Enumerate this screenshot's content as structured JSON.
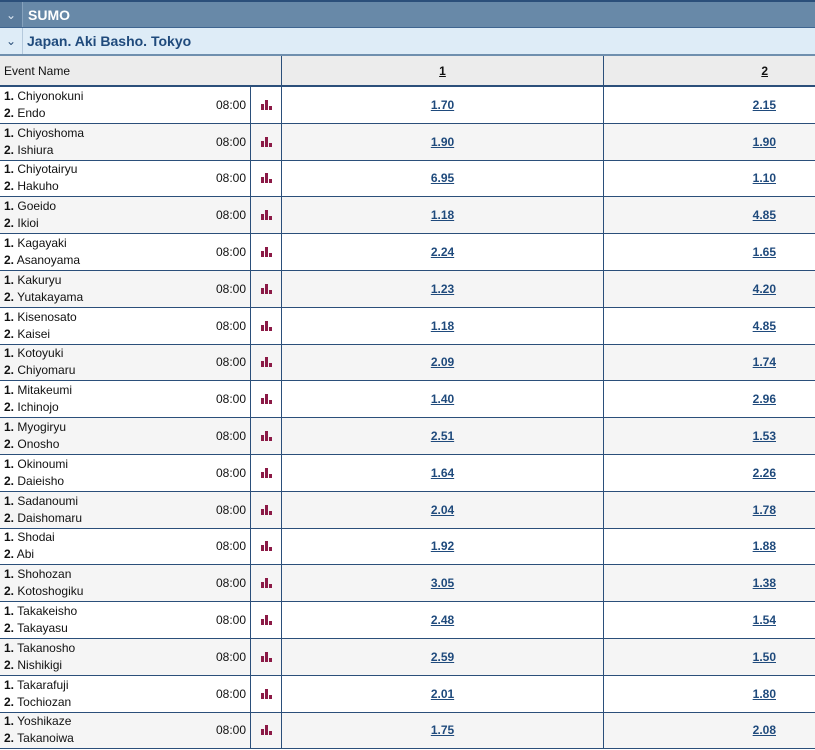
{
  "sport": {
    "title": "SUMO"
  },
  "league": {
    "title": "Japan. Aki Basho. Tokyo"
  },
  "header": {
    "event_name": "Event Name",
    "col1": "1",
    "col2": "2"
  },
  "accent": "#8b1a46",
  "events": [
    {
      "p1": "Chiyonokuni",
      "p2": "Endo",
      "time": "08:00",
      "o1": "1.70",
      "o2": "2.15"
    },
    {
      "p1": "Chiyoshoma",
      "p2": "Ishiura",
      "time": "08:00",
      "o1": "1.90",
      "o2": "1.90"
    },
    {
      "p1": "Chiyotairyu",
      "p2": "Hakuho",
      "time": "08:00",
      "o1": "6.95",
      "o2": "1.10"
    },
    {
      "p1": "Goeido",
      "p2": "Ikioi",
      "time": "08:00",
      "o1": "1.18",
      "o2": "4.85"
    },
    {
      "p1": "Kagayaki",
      "p2": "Asanoyama",
      "time": "08:00",
      "o1": "2.24",
      "o2": "1.65"
    },
    {
      "p1": "Kakuryu",
      "p2": "Yutakayama",
      "time": "08:00",
      "o1": "1.23",
      "o2": "4.20"
    },
    {
      "p1": "Kisenosato",
      "p2": "Kaisei",
      "time": "08:00",
      "o1": "1.18",
      "o2": "4.85"
    },
    {
      "p1": "Kotoyuki",
      "p2": "Chiyomaru",
      "time": "08:00",
      "o1": "2.09",
      "o2": "1.74"
    },
    {
      "p1": "Mitakeumi",
      "p2": "Ichinojo",
      "time": "08:00",
      "o1": "1.40",
      "o2": "2.96"
    },
    {
      "p1": "Myogiryu",
      "p2": "Onosho",
      "time": "08:00",
      "o1": "2.51",
      "o2": "1.53"
    },
    {
      "p1": "Okinoumi",
      "p2": "Daieisho",
      "time": "08:00",
      "o1": "1.64",
      "o2": "2.26"
    },
    {
      "p1": "Sadanoumi",
      "p2": "Daishomaru",
      "time": "08:00",
      "o1": "2.04",
      "o2": "1.78"
    },
    {
      "p1": "Shodai",
      "p2": "Abi",
      "time": "08:00",
      "o1": "1.92",
      "o2": "1.88"
    },
    {
      "p1": "Shohozan",
      "p2": "Kotoshogiku",
      "time": "08:00",
      "o1": "3.05",
      "o2": "1.38"
    },
    {
      "p1": "Takakeisho",
      "p2": "Takayasu",
      "time": "08:00",
      "o1": "2.48",
      "o2": "1.54"
    },
    {
      "p1": "Takanosho",
      "p2": "Nishikigi",
      "time": "08:00",
      "o1": "2.59",
      "o2": "1.50"
    },
    {
      "p1": "Takarafuji",
      "p2": "Tochiozan",
      "time": "08:00",
      "o1": "2.01",
      "o2": "1.80"
    },
    {
      "p1": "Yoshikaze",
      "p2": "Takanoiwa",
      "time": "08:00",
      "o1": "1.75",
      "o2": "2.08"
    }
  ]
}
